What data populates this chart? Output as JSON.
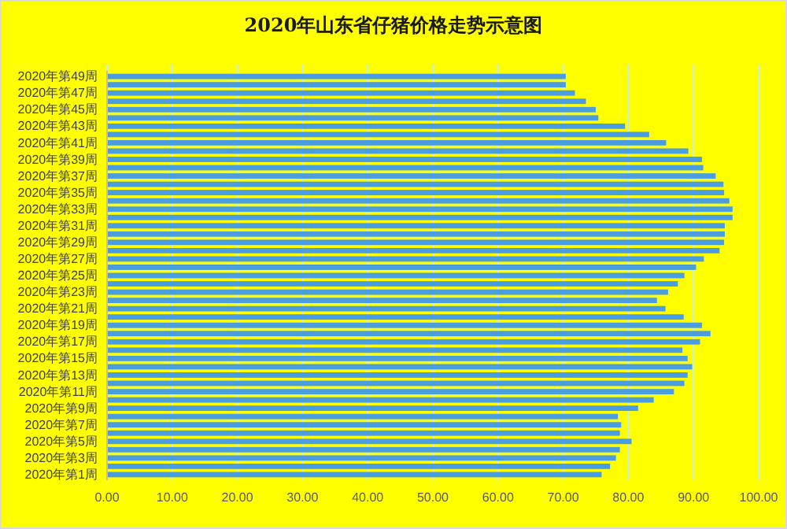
{
  "chart_data": {
    "type": "bar",
    "orientation": "horizontal",
    "title": "2020年山东省仔猪价格走势示意图",
    "categories": [
      "2020年第49周",
      null,
      "2020年第47周",
      null,
      "2020年第45周",
      null,
      "2020年第43周",
      null,
      "2020年第41周",
      null,
      "2020年第39周",
      null,
      "2020年第37周",
      null,
      "2020年第35周",
      null,
      "2020年第33周",
      null,
      "2020年第31周",
      null,
      "2020年第29周",
      null,
      "2020年第27周",
      null,
      "2020年第25周",
      null,
      "2020年第23周",
      null,
      "2020年第21周",
      null,
      "2020年第19周",
      null,
      "2020年第17周",
      null,
      "2020年第15周",
      null,
      "2020年第13周",
      null,
      "2020年第11周",
      null,
      "2020年第9周",
      null,
      "2020年第7周",
      null,
      "2020年第5周",
      null,
      "2020年第3周",
      null,
      "2020年第1周"
    ],
    "values": [
      70.4,
      70.4,
      71.8,
      73.5,
      75.0,
      75.4,
      79.5,
      83.2,
      85.8,
      89.2,
      91.3,
      91.5,
      93.4,
      94.6,
      94.7,
      95.5,
      96.0,
      96.0,
      94.8,
      94.8,
      94.7,
      94.0,
      91.6,
      90.4,
      88.6,
      87.6,
      86.1,
      84.4,
      85.7,
      88.5,
      91.3,
      92.6,
      91.0,
      88.3,
      89.1,
      89.8,
      89.1,
      88.6,
      87.0,
      83.9,
      81.5,
      78.4,
      78.9,
      78.7,
      80.5,
      78.7,
      78.1,
      77.2,
      75.9
    ],
    "color": "#4a9ee0",
    "xlim": [
      0,
      100
    ],
    "xticks": [
      {
        "value": 0,
        "label": "0.00"
      },
      {
        "value": 10,
        "label": "10.00"
      },
      {
        "value": 20,
        "label": "20.00"
      },
      {
        "value": 30,
        "label": "30.00"
      },
      {
        "value": 40,
        "label": "40.00"
      },
      {
        "value": 50,
        "label": "50.00"
      },
      {
        "value": 60,
        "label": "60.00"
      },
      {
        "value": 70,
        "label": "70.00"
      },
      {
        "value": 80,
        "label": "80.00"
      },
      {
        "value": 90,
        "label": "90.00"
      },
      {
        "value": 100,
        "label": "100.00"
      }
    ],
    "grid": "x"
  }
}
